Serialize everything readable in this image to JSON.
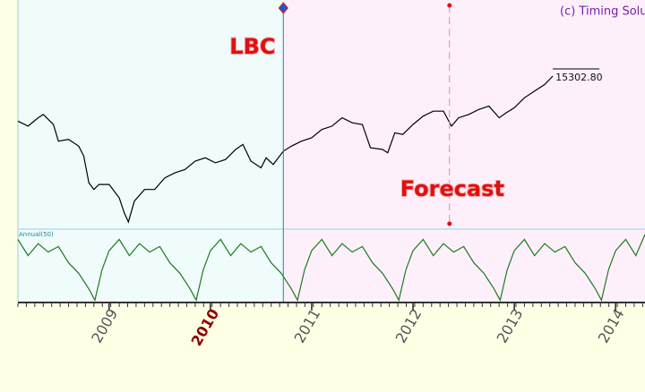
{
  "chart_data": [
    {
      "type": "line",
      "title": "(c) Timing Solu",
      "x": [
        2008.1,
        2008.2,
        2008.3,
        2008.35,
        2008.45,
        2008.5,
        2008.6,
        2008.7,
        2008.75,
        2008.8,
        2008.85,
        2008.9,
        2009.0,
        2009.1,
        2009.15,
        2009.19,
        2009.25,
        2009.35,
        2009.45,
        2009.55,
        2009.65,
        2009.75,
        2009.85,
        2009.95,
        2010.05,
        2010.15,
        2010.25,
        2010.32,
        2010.4,
        2010.5,
        2010.55,
        2010.62,
        2010.72,
        2010.8,
        2010.9,
        2011.0,
        2011.1,
        2011.2,
        2011.3,
        2011.4,
        2011.5,
        2011.58,
        2011.7,
        2011.75,
        2011.82,
        2011.9,
        2012.0,
        2012.1,
        2012.2,
        2012.3,
        2012.38,
        2012.45,
        2012.55,
        2012.65,
        2012.75,
        2012.85,
        2012.92,
        2013.0,
        2013.1,
        2013.2,
        2013.3,
        2013.38
      ],
      "series": [
        {
          "color": "#000000",
          "values": [
            12600,
            12300,
            12800,
            13000,
            12400,
            11400,
            11500,
            11100,
            10500,
            8900,
            8500,
            8800,
            8800,
            8000,
            7100,
            6550,
            7800,
            8500,
            8500,
            9200,
            9500,
            9700,
            10200,
            10400,
            10100,
            10300,
            10900,
            11200,
            10200,
            9800,
            10400,
            10000,
            10800,
            11100,
            11400,
            11600,
            12100,
            12300,
            12800,
            12500,
            12400,
            11000,
            10900,
            10700,
            11900,
            11800,
            12400,
            12900,
            13200,
            13200,
            12300,
            12800,
            13000,
            13300,
            13500,
            12800,
            13100,
            13400,
            14000,
            14400,
            14800,
            15302.8
          ],
          "value_labels": [
            null,
            null,
            null,
            null,
            null,
            null,
            null,
            null,
            null,
            null,
            null,
            null,
            null,
            null,
            null,
            null,
            null,
            null,
            null,
            null,
            null,
            null,
            null,
            null,
            null,
            null,
            null,
            null,
            null,
            null,
            null,
            null,
            null,
            null,
            null,
            null,
            null,
            null,
            null,
            null,
            null,
            null,
            null,
            null,
            null,
            null,
            null,
            null,
            null,
            null,
            null,
            null,
            null,
            null,
            null,
            null,
            null,
            null,
            null,
            null,
            null,
            "15302.80"
          ]
        }
      ],
      "xlim": [
        2008.1,
        2014.29
      ],
      "ylim": [
        6174,
        19868
      ],
      "markers": [
        {
          "x": 2010.72,
          "label": "LBC",
          "color": "#1a8a9a"
        },
        {
          "x": 2012.36,
          "label": "Forecast",
          "color": "#e08aa0"
        }
      ]
    },
    {
      "type": "line",
      "x": [
        2008.1,
        2008.2,
        2008.3,
        2008.4,
        2008.5,
        2008.6,
        2008.7,
        2008.8,
        2008.86,
        2008.93,
        2009.0,
        2009.1,
        2009.2,
        2009.3,
        2009.4,
        2009.5,
        2009.6,
        2009.7,
        2009.8,
        2009.86,
        2009.93,
        2010.0,
        2010.1,
        2010.2,
        2010.3,
        2010.4,
        2010.5,
        2010.6,
        2010.7,
        2010.8,
        2010.86,
        2010.93,
        2011.0,
        2011.1,
        2011.2,
        2011.3,
        2011.4,
        2011.5,
        2011.6,
        2011.7,
        2011.8,
        2011.86,
        2011.93,
        2012.0,
        2012.1,
        2012.2,
        2012.3,
        2012.4,
        2012.5,
        2012.6,
        2012.7,
        2012.8,
        2012.86,
        2012.93,
        2013.0,
        2013.1,
        2013.2,
        2013.3,
        2013.4,
        2013.5,
        2013.6,
        2013.7,
        2013.8,
        2013.86,
        2013.93,
        2014.0,
        2014.1,
        2014.2,
        2014.29
      ],
      "series": [
        {
          "name": "Annual(50)",
          "color": "#1f7a1f",
          "values": [
            88,
            65,
            82,
            70,
            78,
            55,
            40,
            18,
            2,
            45,
            72,
            88,
            65,
            82,
            70,
            78,
            55,
            40,
            18,
            2,
            45,
            72,
            88,
            65,
            82,
            70,
            78,
            55,
            40,
            18,
            2,
            45,
            72,
            88,
            65,
            82,
            70,
            78,
            55,
            40,
            18,
            2,
            45,
            72,
            88,
            65,
            82,
            70,
            78,
            55,
            40,
            18,
            2,
            45,
            72,
            88,
            65,
            82,
            70,
            78,
            55,
            40,
            18,
            2,
            45,
            72,
            88,
            65,
            95
          ]
        }
      ],
      "xlim": [
        2008.1,
        2014.29
      ],
      "ylim": [
        0,
        100
      ],
      "xticks": [
        2009,
        2010,
        2011,
        2012,
        2013,
        2014
      ],
      "xtick_highlight_index": 1
    }
  ]
}
